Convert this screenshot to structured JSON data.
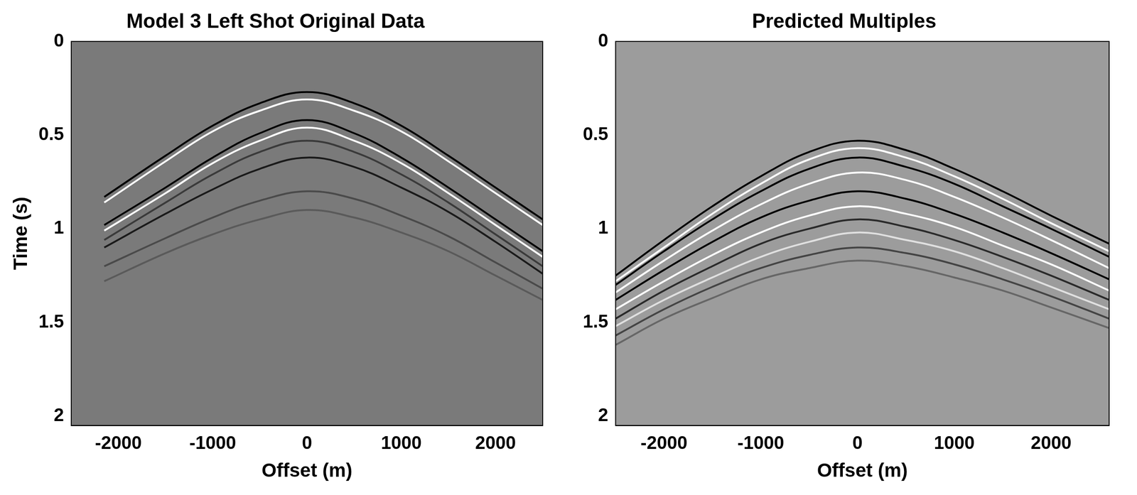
{
  "chart_data": [
    {
      "type": "line",
      "title": "Model 3 Left Shot Original Data",
      "x_label": "Offset (m)",
      "y_label": "Time (s)",
      "xlim": [
        -2500,
        2500
      ],
      "xticks": [
        -2000,
        -1000,
        0,
        1000,
        2000
      ],
      "ylim": [
        0,
        2.05
      ],
      "yticks": [
        0,
        0.5,
        1,
        1.5,
        2
      ],
      "x": [
        -2150,
        -1500,
        -1000,
        -500,
        0,
        500,
        1000,
        1500,
        2000,
        2500
      ],
      "series": [
        {
          "color": "#000000",
          "values": [
            0.83,
            0.61,
            0.45,
            0.33,
            0.27,
            0.33,
            0.45,
            0.61,
            0.78,
            0.95
          ]
        },
        {
          "color": "#ffffff",
          "values": [
            0.86,
            0.64,
            0.48,
            0.37,
            0.31,
            0.37,
            0.48,
            0.64,
            0.81,
            0.98
          ]
        },
        {
          "color": "#000000",
          "values": [
            0.98,
            0.78,
            0.62,
            0.49,
            0.42,
            0.49,
            0.62,
            0.78,
            0.95,
            1.12
          ]
        },
        {
          "color": "#ffffff",
          "values": [
            1.01,
            0.81,
            0.65,
            0.53,
            0.46,
            0.53,
            0.65,
            0.81,
            0.98,
            1.15
          ]
        },
        {
          "color": "#3a3a3a",
          "values": [
            1.06,
            0.86,
            0.71,
            0.59,
            0.53,
            0.59,
            0.71,
            0.86,
            1.03,
            1.2
          ]
        },
        {
          "color": "#1a1a1a",
          "values": [
            1.1,
            0.92,
            0.79,
            0.68,
            0.62,
            0.67,
            0.78,
            0.91,
            1.07,
            1.24
          ]
        },
        {
          "color": "#4a4a4a",
          "values": [
            1.2,
            1.05,
            0.94,
            0.85,
            0.8,
            0.84,
            0.93,
            1.04,
            1.18,
            1.32
          ]
        },
        {
          "color": "#5a5a5a",
          "values": [
            1.28,
            1.13,
            1.03,
            0.95,
            0.9,
            0.94,
            1.02,
            1.12,
            1.25,
            1.38
          ]
        }
      ]
    },
    {
      "type": "line",
      "title": "Predicted Multiples",
      "x_label": "Offset (m)",
      "xlim": [
        -2500,
        2600
      ],
      "xticks": [
        -2000,
        -1000,
        0,
        1000,
        2000
      ],
      "ylim": [
        0,
        2.05
      ],
      "yticks": [
        0,
        0.5,
        1,
        1.5,
        2
      ],
      "x": [
        -2500,
        -2000,
        -1500,
        -1000,
        -500,
        0,
        500,
        1000,
        1500,
        2000,
        2600
      ],
      "series": [
        {
          "color": "#000000",
          "values": [
            1.25,
            1.06,
            0.88,
            0.72,
            0.59,
            0.53,
            0.58,
            0.68,
            0.8,
            0.93,
            1.08
          ]
        },
        {
          "color": "#ffffff",
          "values": [
            1.28,
            1.1,
            0.92,
            0.76,
            0.63,
            0.57,
            0.62,
            0.72,
            0.84,
            0.97,
            1.12
          ]
        },
        {
          "color": "#000000",
          "values": [
            1.3,
            1.12,
            0.95,
            0.8,
            0.68,
            0.62,
            0.67,
            0.76,
            0.88,
            1.0,
            1.15
          ]
        },
        {
          "color": "#ffffff",
          "values": [
            1.34,
            1.17,
            1.01,
            0.87,
            0.76,
            0.7,
            0.74,
            0.83,
            0.94,
            1.06,
            1.21
          ]
        },
        {
          "color": "#000000",
          "values": [
            1.38,
            1.22,
            1.07,
            0.94,
            0.85,
            0.8,
            0.84,
            0.92,
            1.02,
            1.13,
            1.27
          ]
        },
        {
          "color": "#ffffff",
          "values": [
            1.43,
            1.28,
            1.14,
            1.02,
            0.93,
            0.88,
            0.92,
            0.99,
            1.09,
            1.19,
            1.33
          ]
        },
        {
          "color": "#2a2a2a",
          "values": [
            1.48,
            1.33,
            1.2,
            1.08,
            1.0,
            0.95,
            0.99,
            1.06,
            1.15,
            1.25,
            1.38
          ]
        },
        {
          "color": "#e0e0e0",
          "values": [
            1.52,
            1.38,
            1.26,
            1.15,
            1.07,
            1.02,
            1.06,
            1.12,
            1.21,
            1.31,
            1.43
          ]
        },
        {
          "color": "#444444",
          "values": [
            1.57,
            1.43,
            1.31,
            1.21,
            1.14,
            1.1,
            1.13,
            1.19,
            1.27,
            1.36,
            1.48
          ]
        },
        {
          "color": "#666666",
          "values": [
            1.62,
            1.48,
            1.37,
            1.27,
            1.21,
            1.17,
            1.2,
            1.26,
            1.33,
            1.42,
            1.53
          ]
        }
      ]
    }
  ]
}
